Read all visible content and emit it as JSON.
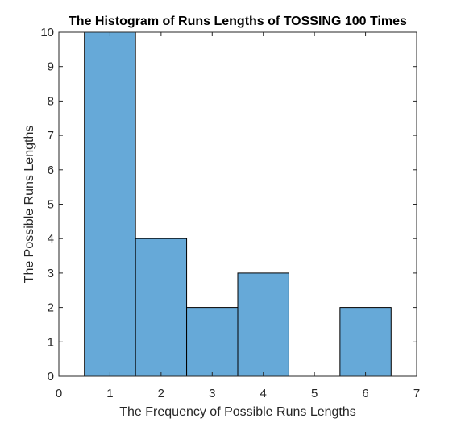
{
  "chart_data": {
    "type": "bar",
    "title": "The Histogram of Runs Lengths of TOSSING 100 Times",
    "xlabel": "The Frequency of Possible Runs Lengths",
    "ylabel": "The Possible Runs Lengths",
    "xlim": [
      0,
      7
    ],
    "ylim": [
      0,
      10
    ],
    "x_ticks": [
      "0",
      "1",
      "2",
      "3",
      "4",
      "5",
      "6",
      "7"
    ],
    "y_ticks": [
      "0",
      "1",
      "2",
      "3",
      "4",
      "5",
      "6",
      "7",
      "8",
      "9",
      "10"
    ],
    "bin_width": 1,
    "bins": [
      {
        "x": 1,
        "value": 10
      },
      {
        "x": 2,
        "value": 4
      },
      {
        "x": 3,
        "value": 2
      },
      {
        "x": 4,
        "value": 3
      },
      {
        "x": 5,
        "value": 0
      },
      {
        "x": 6,
        "value": 2
      }
    ],
    "grid": false,
    "bar_color": "#66a9d8",
    "edge_color": "#000000"
  }
}
